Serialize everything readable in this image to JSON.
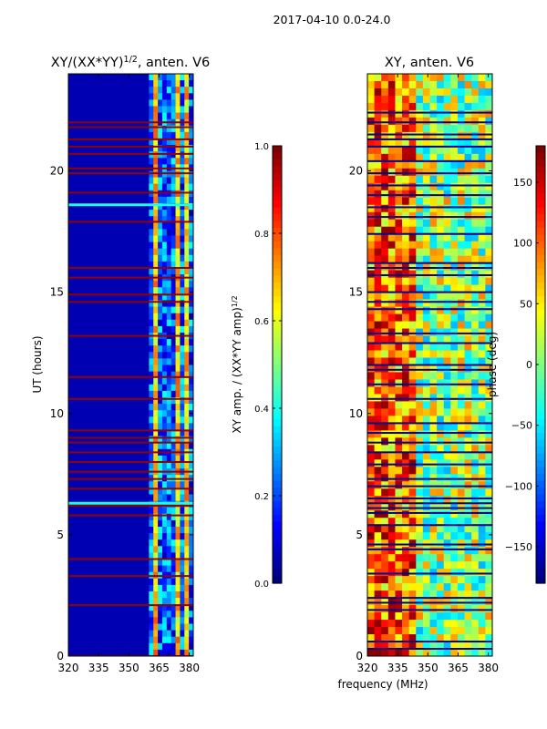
{
  "figure": {
    "suptitle": "2017-04-10 0.0-24.0",
    "shared_xlabel": "frequency (MHz)"
  },
  "colors": {
    "jet": [
      "#00007f",
      "#0000ff",
      "#007fff",
      "#00ffff",
      "#7fff7f",
      "#ffff00",
      "#ff7f00",
      "#ff0000",
      "#7f0000"
    ],
    "frame": "#000000"
  },
  "chart_data": [
    {
      "type": "heatmap",
      "title_base": "XY/(XX*YY)",
      "title_sup": "1/2",
      "title_suffix": ", anten. V6",
      "ylabel": "UT (hours)",
      "xlabel": "",
      "xlim": [
        320,
        382
      ],
      "ylim": [
        0,
        24
      ],
      "xticks": [
        320,
        335,
        350,
        365,
        380
      ],
      "yticks": [
        0,
        5,
        10,
        15,
        20
      ],
      "colorbar": {
        "label_base": "XY amp. / (XX*YY amp)",
        "label_sup": "1/2",
        "range": [
          0.0,
          1.0
        ],
        "ticks": [
          "0.0",
          "0.2",
          "0.4",
          "0.6",
          "0.8",
          "1.0"
        ]
      },
      "dominant_value": 0.05,
      "band_freq_range": [
        360,
        382
      ],
      "saturated_rows_ut": [
        0.0,
        2.1,
        3.3,
        4.0,
        5.8,
        6.2,
        6.9,
        7.3,
        7.6,
        8.0,
        8.4,
        8.8,
        9.0,
        9.3,
        10.6,
        11.5,
        13.2,
        14.6,
        14.9,
        15.6,
        16.0,
        17.9,
        19.1,
        19.9,
        20.1,
        20.7,
        21.0,
        21.3,
        21.8,
        22.0
      ],
      "band_rows_ut": [
        6.3,
        18.6
      ]
    },
    {
      "type": "heatmap",
      "title": "XY, anten. V6",
      "ylabel": "",
      "xlabel": "frequency (MHz)",
      "xlim": [
        320,
        382
      ],
      "ylim": [
        0,
        24
      ],
      "xticks": [
        320,
        335,
        350,
        365,
        380
      ],
      "yticks": [
        0,
        5,
        10,
        15,
        20
      ],
      "colorbar": {
        "label": "phase (deg)",
        "range": [
          -180,
          180
        ],
        "ticks": [
          "150",
          "100",
          "50",
          "0",
          "−50",
          "−100",
          "−150"
        ]
      },
      "gap_rows_ut": [
        0.3,
        0.6,
        1.9,
        2.2,
        2.4,
        3.4,
        4.4,
        4.6,
        5.4,
        5.9,
        6.1,
        6.3,
        6.5,
        7.0,
        7.3,
        7.9,
        8.4,
        8.8,
        9.2,
        9.6,
        10.6,
        11.2,
        11.8,
        12.0,
        12.9,
        13.3,
        14.3,
        14.6,
        15.0,
        15.7,
        16.0,
        16.2,
        17.4,
        18.1,
        18.5,
        19.0,
        19.4,
        19.9,
        20.4,
        21.0,
        21.3,
        21.5,
        22.0,
        22.4
      ]
    }
  ]
}
